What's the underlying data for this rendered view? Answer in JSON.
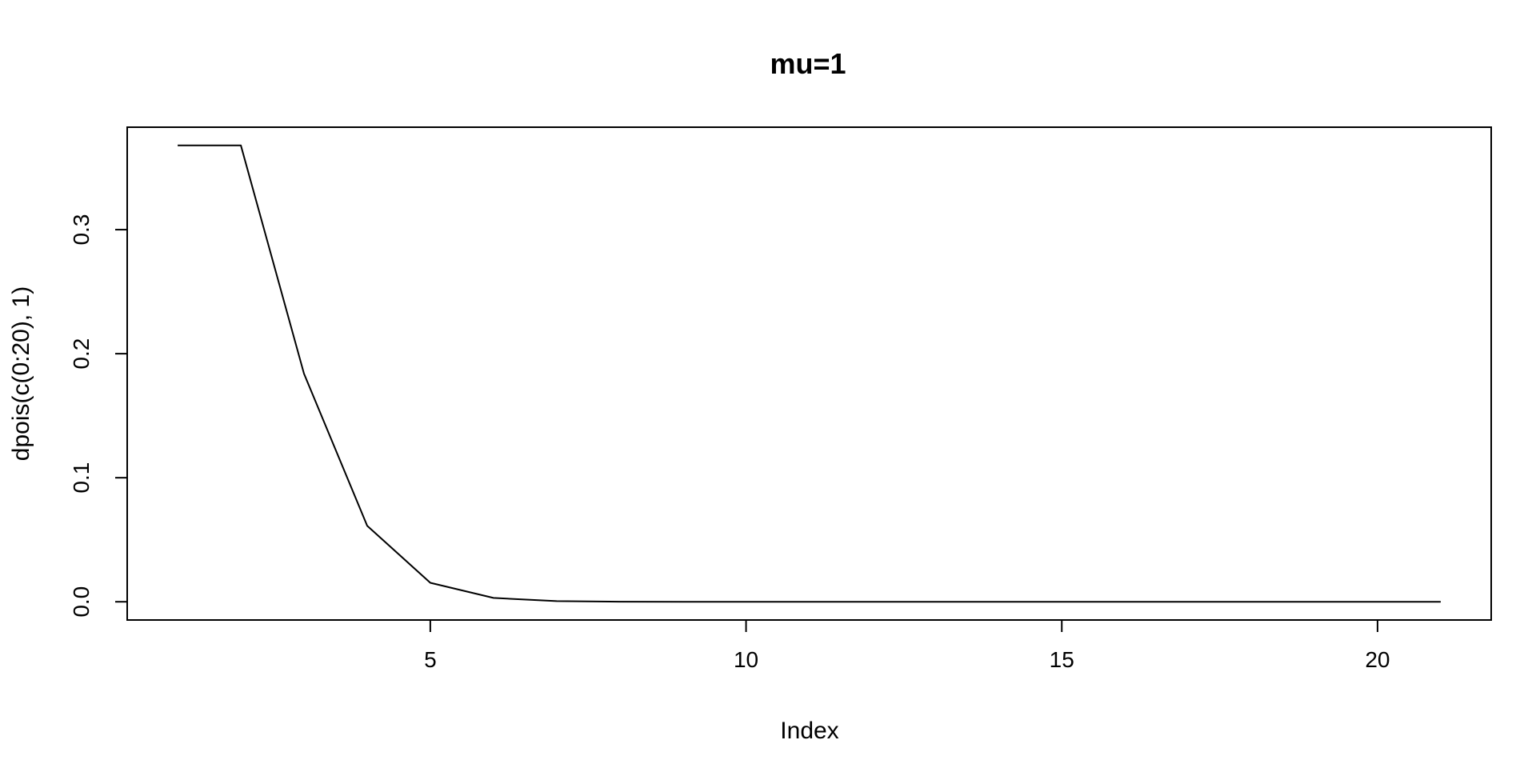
{
  "chart_data": {
    "type": "line",
    "title": "mu=1",
    "xlabel": "Index",
    "ylabel": "dpois(c(0:20), 1)",
    "x": [
      1,
      2,
      3,
      4,
      5,
      6,
      7,
      8,
      9,
      10,
      11,
      12,
      13,
      14,
      15,
      16,
      17,
      18,
      19,
      20,
      21
    ],
    "series": [
      {
        "values": [
          0.3679,
          0.3679,
          0.1839,
          0.0613,
          0.0153,
          0.0031,
          0.0005,
          0.0001,
          0.0,
          0.0,
          0.0,
          0.0,
          0.0,
          0.0,
          0.0,
          0.0,
          0.0,
          0.0,
          0.0,
          0.0,
          0.0
        ]
      }
    ],
    "xlim": [
      0.2,
      21.8
    ],
    "ylim": [
      -0.0147,
      0.3826
    ],
    "xticks": [
      5,
      10,
      15,
      20
    ],
    "xtick_labels": [
      "5",
      "10",
      "15",
      "20"
    ],
    "yticks": [
      0.0,
      0.1,
      0.2,
      0.3
    ],
    "ytick_labels": [
      "0.0",
      "0.1",
      "0.2",
      "0.3"
    ],
    "grid": false,
    "color": "#000000"
  }
}
